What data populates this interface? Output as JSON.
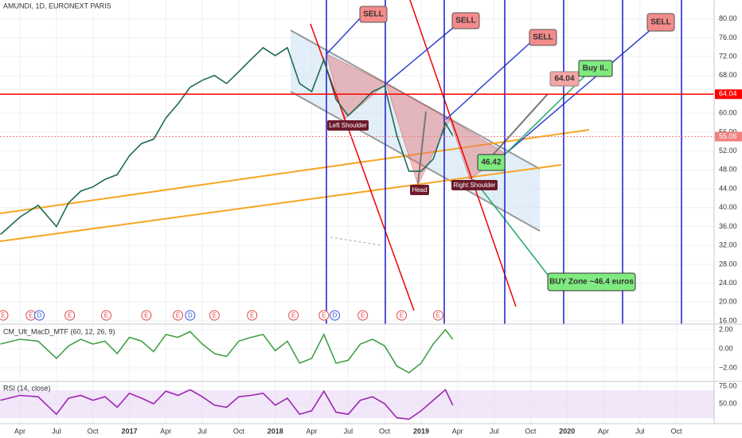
{
  "chart_data": [
    {
      "type": "line",
      "title": "AMUNDI, 1D, EURONEXT PARIS",
      "color": "#1e6b52",
      "x": [
        1.4,
        3,
        4.5,
        6,
        7,
        8,
        9,
        10,
        11,
        12,
        13,
        14,
        15,
        16,
        17,
        18,
        19,
        20,
        21,
        22,
        23,
        24,
        25,
        26,
        27,
        28,
        29,
        30,
        31,
        32,
        33,
        34,
        35,
        36,
        37,
        38,
        38.6
      ],
      "values": [
        34.3,
        38,
        40.5,
        36,
        41,
        43.5,
        44.4,
        46,
        47,
        51,
        53.6,
        54.5,
        59,
        62,
        65.5,
        67,
        68,
        66.3,
        68.8,
        71.4,
        73.9,
        72.2,
        73.9,
        66.3,
        64.6,
        71.4,
        62.9,
        59.5,
        62,
        64.6,
        65.8,
        55.3,
        47.7,
        47.7,
        50.3,
        57.9,
        55.3
      ],
      "xlim": [
        1.36,
        60.1
      ],
      "xticks": [
        {
          "value": 3,
          "label": "Apr"
        },
        {
          "value": 6,
          "label": "Jul"
        },
        {
          "value": 9,
          "label": "Oct"
        },
        {
          "value": 12,
          "label": "2017"
        },
        {
          "value": 15,
          "label": "Apr"
        },
        {
          "value": 18,
          "label": "Jul"
        },
        {
          "value": 21,
          "label": "Oct"
        },
        {
          "value": 24,
          "label": "2018"
        },
        {
          "value": 27,
          "label": "Apr"
        },
        {
          "value": 30,
          "label": "Jul"
        },
        {
          "value": 33,
          "label": "Oct"
        },
        {
          "value": 36,
          "label": "2019"
        },
        {
          "value": 39,
          "label": "Apr"
        },
        {
          "value": 42,
          "label": "Jul"
        },
        {
          "value": 45,
          "label": "Oct"
        },
        {
          "value": 48,
          "label": "2020"
        },
        {
          "value": 51,
          "label": "Apr"
        },
        {
          "value": 54,
          "label": "Jul"
        },
        {
          "value": 57,
          "label": "Oct"
        }
      ],
      "ylim": [
        16,
        84
      ],
      "yticks": [
        {
          "value": 16,
          "label": "16.00"
        },
        {
          "value": 20,
          "label": "20.00"
        },
        {
          "value": 24,
          "label": "24.00"
        },
        {
          "value": 28,
          "label": "28.00"
        },
        {
          "value": 32,
          "label": "32.00"
        },
        {
          "value": 36,
          "label": "36.00"
        },
        {
          "value": 40,
          "label": "40.00"
        },
        {
          "value": 44,
          "label": "44.00"
        },
        {
          "value": 48,
          "label": "48.00"
        },
        {
          "value": 52,
          "label": "52.00"
        },
        {
          "value": 56,
          "label": "56.00"
        },
        {
          "value": 60,
          "label": "60.00"
        },
        {
          "value": 64,
          "label": "64.00"
        },
        {
          "value": 68,
          "label": "68.00"
        },
        {
          "value": 72,
          "label": "72.00"
        },
        {
          "value": 76,
          "label": "76.00"
        },
        {
          "value": 80,
          "label": "80.00"
        }
      ],
      "hlines": [
        {
          "value": 64.04,
          "label": "64.04",
          "color": "#ff0000"
        },
        {
          "value": 55.06,
          "label": "55.06",
          "color": "#f08080"
        }
      ],
      "annotations": [
        "SELL",
        "SELL",
        "SELL",
        "SELL",
        "64.04",
        "Buy II..",
        "46.42",
        "Left Shoulder",
        "Head",
        "Right Shoulder",
        "BUY Zone ~46.4 euros"
      ],
      "events": [
        {
          "x": 1.62,
          "label": "E"
        },
        {
          "x": 3.9,
          "label": "E"
        },
        {
          "x": 4.6,
          "label": "D"
        },
        {
          "x": 7.1,
          "label": "E"
        },
        {
          "x": 10.1,
          "label": "E"
        },
        {
          "x": 13.4,
          "label": "E"
        },
        {
          "x": 16,
          "label": "E"
        },
        {
          "x": 17,
          "label": "D"
        },
        {
          "x": 19,
          "label": "E"
        },
        {
          "x": 22.1,
          "label": "E"
        },
        {
          "x": 25.5,
          "label": "E"
        },
        {
          "x": 28,
          "label": "E"
        },
        {
          "x": 28.9,
          "label": "D"
        },
        {
          "x": 31.2,
          "label": "E"
        },
        {
          "x": 34.4,
          "label": "E"
        },
        {
          "x": 37.4,
          "label": "E"
        }
      ]
    },
    {
      "type": "line",
      "title": "CM_Ult_MacD_MTF (60, 12, 26, 9)",
      "color": "#43a047",
      "values": [
        0.5,
        1,
        0.8,
        -1,
        0.3,
        1,
        0.5,
        0.8,
        -0.5,
        1.2,
        0.8,
        -0.3,
        1.5,
        1.2,
        1.8,
        0.5,
        -0.5,
        -0.8,
        0.8,
        1.2,
        1.5,
        -0.2,
        0.8,
        -1.5,
        -1,
        1.5,
        -1.5,
        -1.2,
        0.5,
        1,
        0.3,
        -1.8,
        -2.5,
        -1.5,
        0.5,
        2,
        1
      ],
      "ylim": [
        -3.33,
        2.33
      ],
      "yticks": [
        {
          "value": 2,
          "label": "2.00"
        },
        {
          "value": 0,
          "label": "0.00"
        },
        {
          "value": -2,
          "label": "−2.00"
        }
      ]
    },
    {
      "type": "line",
      "title": "RSI (14, close)",
      "color": "#9c27b0",
      "values": [
        55,
        62,
        60,
        35,
        58,
        62,
        55,
        60,
        45,
        65,
        58,
        50,
        68,
        62,
        70,
        60,
        48,
        45,
        60,
        62,
        65,
        48,
        58,
        35,
        40,
        68,
        38,
        35,
        55,
        60,
        50,
        30,
        28,
        40,
        55,
        70,
        48
      ],
      "ylim": [
        23.9,
        80.7
      ],
      "yticks": [
        {
          "value": 75,
          "label": "75.00"
        },
        {
          "value": 50,
          "label": "50.00"
        }
      ]
    }
  ]
}
